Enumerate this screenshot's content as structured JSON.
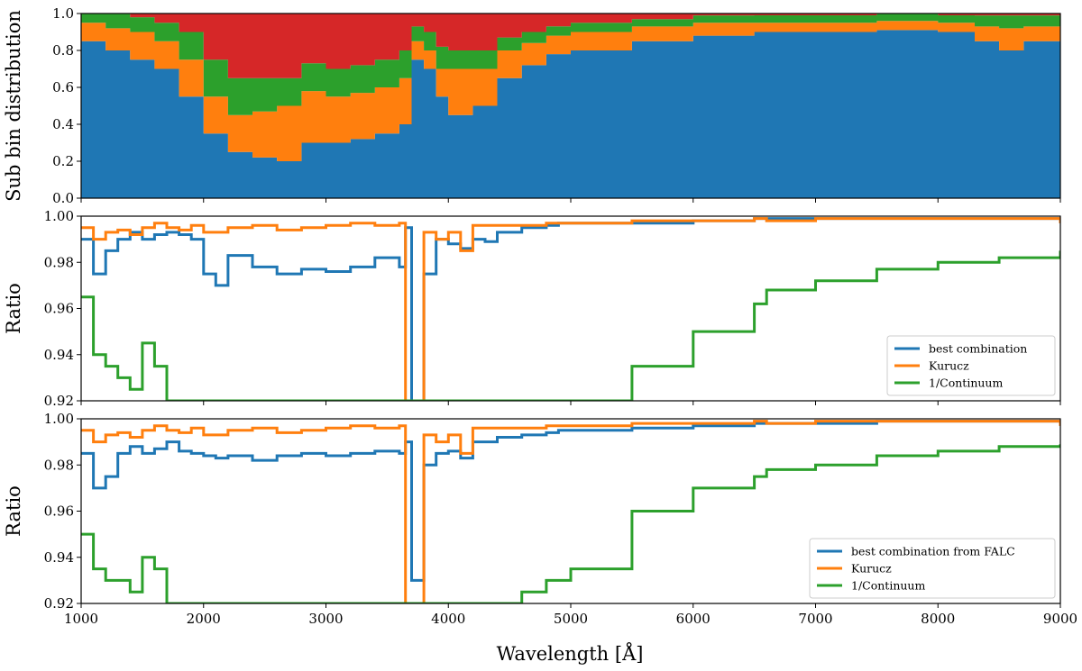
{
  "chart_data": [
    {
      "type": "area",
      "stacked": true,
      "ylabel": "Sub bin distribution",
      "xlabel": "",
      "xlim": [
        1000,
        9000
      ],
      "ylim": [
        0,
        1
      ],
      "xticks": [
        1000,
        2000,
        3000,
        4000,
        5000,
        6000,
        7000,
        8000,
        9000
      ],
      "yticks": [
        0.0,
        0.2,
        0.4,
        0.6,
        0.8,
        1.0
      ],
      "ytick_labels": [
        "0.0",
        "0.2",
        "0.4",
        "0.6",
        "0.8",
        "1.0"
      ],
      "grid": false,
      "colors": [
        "#1f77b4",
        "#ff7f0e",
        "#2ca02c",
        "#d62728"
      ],
      "x": [
        1000,
        1200,
        1400,
        1600,
        1800,
        2000,
        2200,
        2400,
        2600,
        2800,
        3000,
        3200,
        3400,
        3600,
        3700,
        3800,
        3900,
        4000,
        4200,
        4400,
        4600,
        4800,
        5000,
        5500,
        6000,
        6500,
        7000,
        7500,
        8000,
        8300,
        8500,
        8700,
        9000
      ],
      "series": [
        {
          "values": [
            0.85,
            0.8,
            0.75,
            0.7,
            0.55,
            0.35,
            0.25,
            0.22,
            0.2,
            0.3,
            0.3,
            0.32,
            0.35,
            0.4,
            0.75,
            0.7,
            0.55,
            0.45,
            0.5,
            0.65,
            0.72,
            0.78,
            0.8,
            0.85,
            0.88,
            0.9,
            0.9,
            0.91,
            0.9,
            0.85,
            0.8,
            0.85,
            0.85
          ]
        },
        {
          "values": [
            0.1,
            0.12,
            0.15,
            0.15,
            0.2,
            0.2,
            0.2,
            0.25,
            0.3,
            0.28,
            0.25,
            0.25,
            0.25,
            0.25,
            0.1,
            0.1,
            0.15,
            0.25,
            0.2,
            0.15,
            0.12,
            0.1,
            0.1,
            0.08,
            0.07,
            0.05,
            0.05,
            0.05,
            0.05,
            0.08,
            0.12,
            0.08,
            0.08
          ]
        },
        {
          "values": [
            0.05,
            0.08,
            0.08,
            0.1,
            0.15,
            0.2,
            0.2,
            0.18,
            0.15,
            0.15,
            0.15,
            0.15,
            0.15,
            0.15,
            0.08,
            0.1,
            0.12,
            0.1,
            0.1,
            0.07,
            0.06,
            0.05,
            0.05,
            0.04,
            0.04,
            0.04,
            0.04,
            0.04,
            0.04,
            0.06,
            0.07,
            0.06,
            0.06
          ]
        },
        {
          "values": [
            0.0,
            0.0,
            0.02,
            0.05,
            0.1,
            0.25,
            0.35,
            0.35,
            0.35,
            0.27,
            0.3,
            0.28,
            0.25,
            0.2,
            0.07,
            0.1,
            0.18,
            0.2,
            0.2,
            0.13,
            0.1,
            0.07,
            0.05,
            0.03,
            0.01,
            0.01,
            0.01,
            0.0,
            0.01,
            0.01,
            0.01,
            0.01,
            0.01
          ]
        }
      ]
    },
    {
      "type": "line",
      "ylabel": "Ratio",
      "xlabel": "",
      "xlim": [
        1000,
        9000
      ],
      "ylim": [
        0.92,
        1.0
      ],
      "xticks": [
        1000,
        2000,
        3000,
        4000,
        5000,
        6000,
        7000,
        8000,
        9000
      ],
      "yticks": [
        0.92,
        0.94,
        0.96,
        0.98,
        1.0
      ],
      "ytick_labels": [
        "0.92",
        "0.94",
        "0.96",
        "0.98",
        "1.00"
      ],
      "grid": false,
      "legend_position": "lower-right",
      "x": [
        1000,
        1100,
        1200,
        1300,
        1400,
        1500,
        1600,
        1700,
        1800,
        1900,
        2000,
        2100,
        2200,
        2400,
        2600,
        2800,
        3000,
        3200,
        3400,
        3600,
        3650,
        3700,
        3800,
        3900,
        4000,
        4100,
        4200,
        4300,
        4400,
        4600,
        4800,
        4900,
        5000,
        5500,
        6000,
        6500,
        6600,
        7000,
        7500,
        8000,
        8500,
        9000
      ],
      "series": [
        {
          "name": "best combination",
          "color": "#1f77b4",
          "values": [
            0.99,
            0.975,
            0.985,
            0.99,
            0.993,
            0.99,
            0.992,
            0.993,
            0.992,
            0.99,
            0.975,
            0.97,
            0.983,
            0.978,
            0.975,
            0.977,
            0.976,
            0.978,
            0.982,
            0.978,
            0.995,
            0.92,
            0.975,
            0.99,
            0.988,
            0.986,
            0.99,
            0.989,
            0.993,
            0.995,
            0.996,
            0.997,
            0.997,
            0.997,
            0.998,
            0.999,
            0.999,
            0.999,
            0.999,
            0.999,
            0.999,
            0.997
          ]
        },
        {
          "name": "Kurucz",
          "color": "#ff7f0e",
          "values": [
            0.995,
            0.99,
            0.993,
            0.994,
            0.992,
            0.995,
            0.997,
            0.995,
            0.994,
            0.996,
            0.993,
            0.993,
            0.995,
            0.996,
            0.994,
            0.995,
            0.996,
            0.997,
            0.996,
            0.997,
            0.92,
            0.92,
            0.993,
            0.99,
            0.993,
            0.985,
            0.996,
            0.996,
            0.996,
            0.996,
            0.997,
            0.997,
            0.997,
            0.998,
            0.998,
            0.999,
            0.998,
            0.999,
            0.999,
            0.999,
            0.999,
            0.997
          ]
        },
        {
          "name": "1/Continuum",
          "color": "#2ca02c",
          "values": [
            0.965,
            0.94,
            0.935,
            0.93,
            0.925,
            0.945,
            0.935,
            0.92,
            0.92,
            0.92,
            0.92,
            0.92,
            0.92,
            0.92,
            0.92,
            0.92,
            0.92,
            0.92,
            0.92,
            0.92,
            0.92,
            0.92,
            0.92,
            0.92,
            0.92,
            0.92,
            0.92,
            0.92,
            0.92,
            0.92,
            0.92,
            0.92,
            0.92,
            0.935,
            0.95,
            0.962,
            0.968,
            0.972,
            0.977,
            0.98,
            0.982,
            0.985
          ]
        }
      ]
    },
    {
      "type": "line",
      "ylabel": "Ratio",
      "xlabel": "Wavelength [Å]",
      "xlim": [
        1000,
        9000
      ],
      "ylim": [
        0.92,
        1.0
      ],
      "xticks": [
        1000,
        2000,
        3000,
        4000,
        5000,
        6000,
        7000,
        8000,
        9000
      ],
      "xtick_labels": [
        "1000",
        "2000",
        "3000",
        "4000",
        "5000",
        "6000",
        "7000",
        "8000",
        "9000"
      ],
      "yticks": [
        0.92,
        0.94,
        0.96,
        0.98,
        1.0
      ],
      "ytick_labels": [
        "0.92",
        "0.94",
        "0.96",
        "0.98",
        "1.00"
      ],
      "grid": false,
      "legend_position": "lower-right",
      "x": [
        1000,
        1100,
        1200,
        1300,
        1400,
        1500,
        1600,
        1700,
        1800,
        1900,
        2000,
        2100,
        2200,
        2400,
        2600,
        2800,
        3000,
        3200,
        3400,
        3600,
        3650,
        3700,
        3800,
        3900,
        4000,
        4100,
        4200,
        4300,
        4400,
        4600,
        4800,
        4900,
        5000,
        5500,
        6000,
        6500,
        6600,
        7000,
        7500,
        8000,
        8500,
        9000
      ],
      "series": [
        {
          "name": "best combination from FALC",
          "color": "#1f77b4",
          "values": [
            0.985,
            0.97,
            0.975,
            0.985,
            0.988,
            0.985,
            0.987,
            0.99,
            0.986,
            0.985,
            0.984,
            0.983,
            0.984,
            0.982,
            0.984,
            0.985,
            0.984,
            0.985,
            0.986,
            0.985,
            0.99,
            0.93,
            0.98,
            0.985,
            0.986,
            0.983,
            0.99,
            0.99,
            0.992,
            0.993,
            0.994,
            0.995,
            0.995,
            0.996,
            0.997,
            0.998,
            0.998,
            0.998,
            0.999,
            0.999,
            0.999,
            0.997
          ]
        },
        {
          "name": "Kurucz",
          "color": "#ff7f0e",
          "values": [
            0.995,
            0.99,
            0.993,
            0.994,
            0.992,
            0.995,
            0.997,
            0.995,
            0.994,
            0.996,
            0.993,
            0.993,
            0.995,
            0.996,
            0.994,
            0.995,
            0.996,
            0.997,
            0.996,
            0.997,
            0.92,
            0.92,
            0.993,
            0.99,
            0.993,
            0.985,
            0.996,
            0.996,
            0.996,
            0.996,
            0.997,
            0.997,
            0.997,
            0.998,
            0.998,
            0.999,
            0.998,
            0.999,
            0.999,
            0.999,
            0.999,
            0.997
          ]
        },
        {
          "name": "1/Continuum",
          "color": "#2ca02c",
          "values": [
            0.95,
            0.935,
            0.93,
            0.93,
            0.925,
            0.94,
            0.935,
            0.92,
            0.92,
            0.92,
            0.92,
            0.92,
            0.92,
            0.92,
            0.92,
            0.92,
            0.92,
            0.92,
            0.92,
            0.92,
            0.92,
            0.92,
            0.92,
            0.92,
            0.92,
            0.92,
            0.92,
            0.92,
            0.92,
            0.925,
            0.93,
            0.93,
            0.935,
            0.96,
            0.97,
            0.975,
            0.978,
            0.98,
            0.984,
            0.986,
            0.988,
            0.989
          ]
        }
      ]
    }
  ]
}
